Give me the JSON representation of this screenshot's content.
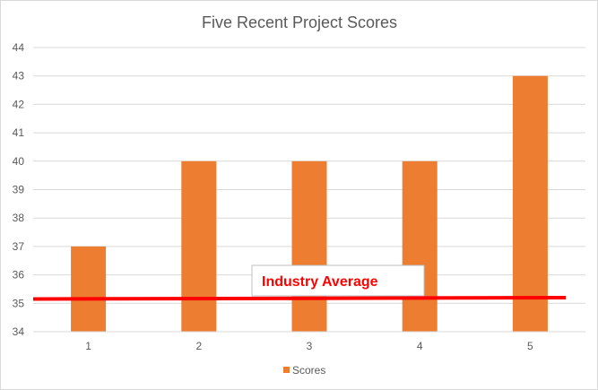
{
  "chart_data": {
    "type": "bar",
    "title": "Five Recent Project Scores",
    "categories": [
      "1",
      "2",
      "3",
      "4",
      "5"
    ],
    "series": [
      {
        "name": "Scores",
        "values": [
          37,
          40,
          40,
          40,
          43
        ]
      }
    ],
    "ylim": [
      34,
      44
    ],
    "y_ticks": [
      34,
      35,
      36,
      37,
      38,
      39,
      40,
      41,
      42,
      43,
      44
    ],
    "grid": true,
    "legend_position": "bottom",
    "reference_line": {
      "label": "Industry Average",
      "value_start": 35.15,
      "value_end": 35.2
    },
    "colors": {
      "bar": "#ed7d31",
      "reference_line": "#ff0000",
      "grid": "#d9d9d9",
      "text": "#595959"
    }
  }
}
